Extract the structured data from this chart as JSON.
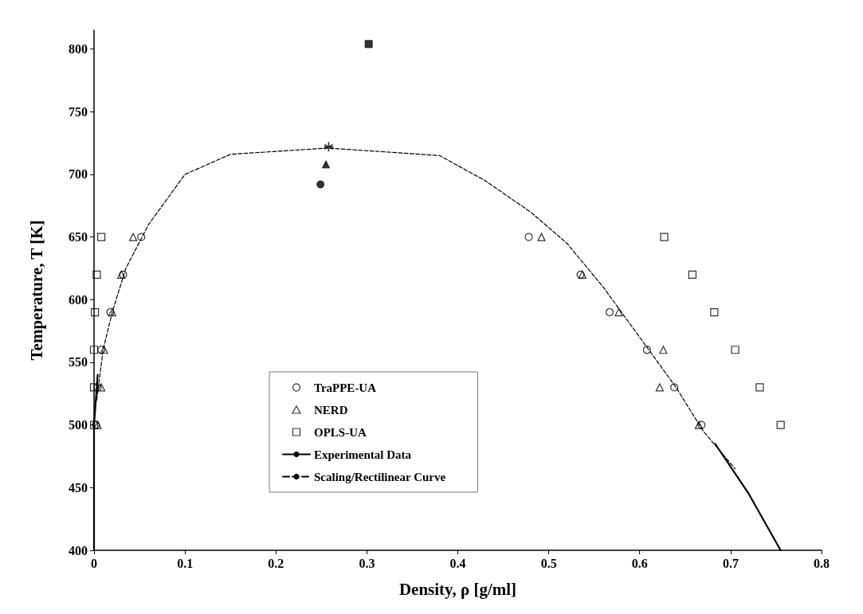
{
  "chart_data": {
    "type": "scatter",
    "xlabel": "Density, ρ [g/ml]",
    "ylabel": "Temperature, T [K]",
    "xlim": [
      0,
      0.8
    ],
    "ylim": [
      400,
      815
    ],
    "xticks": [
      0,
      0.1,
      0.2,
      0.3,
      0.4,
      0.5,
      0.6,
      0.7,
      0.8
    ],
    "yticks": [
      400,
      450,
      500,
      550,
      600,
      650,
      700,
      750,
      800
    ],
    "grid": false,
    "legend": "bottom left",
    "series": [
      {
        "name": "TraPPE-UA",
        "marker": "circle",
        "color": "#000000",
        "x": [
          0.002,
          0.004,
          0.008,
          0.018,
          0.032,
          0.052,
          0.478,
          0.535,
          0.567,
          0.608,
          0.638,
          0.668
        ],
        "values": [
          500,
          530,
          560,
          590,
          620,
          650,
          650,
          620,
          590,
          560,
          530,
          500
        ]
      },
      {
        "name": "NERD",
        "marker": "triangle",
        "color": "#000000",
        "x": [
          0.004,
          0.008,
          0.011,
          0.02,
          0.03,
          0.043,
          0.492,
          0.537,
          0.577,
          0.626,
          0.622,
          0.665
        ],
        "values": [
          500,
          530,
          560,
          590,
          620,
          650,
          650,
          620,
          590,
          560,
          530,
          500
        ]
      },
      {
        "name": "OPLS-UA",
        "marker": "square",
        "color": "#000000",
        "x": [
          0,
          0,
          0,
          0.001,
          0.003,
          0.008,
          0.627,
          0.658,
          0.682,
          0.705,
          0.732,
          0.755
        ],
        "values": [
          500,
          530,
          560,
          590,
          620,
          650,
          650,
          620,
          590,
          560,
          530,
          500
        ]
      },
      {
        "name": "Experimental Data",
        "type": "line",
        "line_style": "solid",
        "marker": "none",
        "color": "#000000",
        "x": [
          0,
          0,
          0.004,
          null,
          0.683,
          0.72,
          0.755
        ],
        "values": [
          400,
          500,
          540,
          null,
          485,
          445,
          400
        ]
      },
      {
        "name": "Scaling/Rectilinear Curve",
        "type": "line",
        "line_style": "dashed",
        "marker": "none",
        "color": "#000000",
        "x": [
          0.003,
          0.01,
          0.02,
          0.035,
          0.06,
          0.1,
          0.15,
          0.257,
          0.38,
          0.43,
          0.48,
          0.52,
          0.56,
          0.6,
          0.64,
          0.67,
          0.705
        ],
        "values": [
          520,
          560,
          590,
          625,
          660,
          700,
          716,
          721,
          715,
          695,
          670,
          645,
          610,
          570,
          530,
          495,
          465
        ]
      },
      {
        "marker": "circle",
        "color": "#000000",
        "x": [
          0.249
        ],
        "values": [
          692
        ]
      },
      {
        "marker": "triangle",
        "color": "#000000",
        "x": [
          0.255
        ],
        "values": [
          708
        ]
      },
      {
        "marker": "square",
        "color": "#000000",
        "x": [
          0.302
        ],
        "values": [
          804
        ]
      },
      {
        "marker": "cross",
        "color": "#000000",
        "x": [
          0.258
        ],
        "values": [
          722
        ]
      }
    ]
  }
}
